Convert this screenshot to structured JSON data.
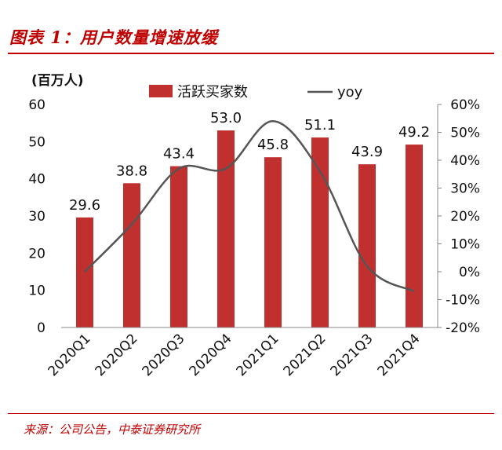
{
  "figure_title": "图表 1：用户数量增速放缓",
  "source_note": "来源：公司公告，中泰证券研究所",
  "chart_data": {
    "type": "bar",
    "title": "",
    "unit_label": "(百万人)",
    "categories": [
      "2020Q1",
      "2020Q2",
      "2020Q3",
      "2020Q4",
      "2021Q1",
      "2021Q2",
      "2021Q3",
      "2021Q4"
    ],
    "series": [
      {
        "name": "活跃买家数",
        "type": "bar",
        "axis": "left",
        "values": [
          29.6,
          38.8,
          43.4,
          53.0,
          45.8,
          51.1,
          43.9,
          49.2
        ],
        "labels": [
          "29.6",
          "38.8",
          "43.4",
          "53.0",
          "45.8",
          "51.1",
          "43.9",
          "49.2"
        ],
        "color": "#c0302e"
      },
      {
        "name": "yoy",
        "type": "line",
        "axis": "right",
        "values": [
          0.0,
          0.17,
          0.37,
          0.37,
          0.54,
          0.36,
          0.02,
          -0.07
        ],
        "color": "#555555"
      }
    ],
    "y_left": {
      "min": 0,
      "max": 60,
      "ticks": [
        "0",
        "10",
        "20",
        "30",
        "40",
        "50",
        "60"
      ]
    },
    "y_right": {
      "min": -0.2,
      "max": 0.6,
      "ticks": [
        "-20%",
        "-10%",
        "0%",
        "10%",
        "20%",
        "30%",
        "40%",
        "50%",
        "60%"
      ]
    },
    "legend_position": "top",
    "grid": false
  }
}
